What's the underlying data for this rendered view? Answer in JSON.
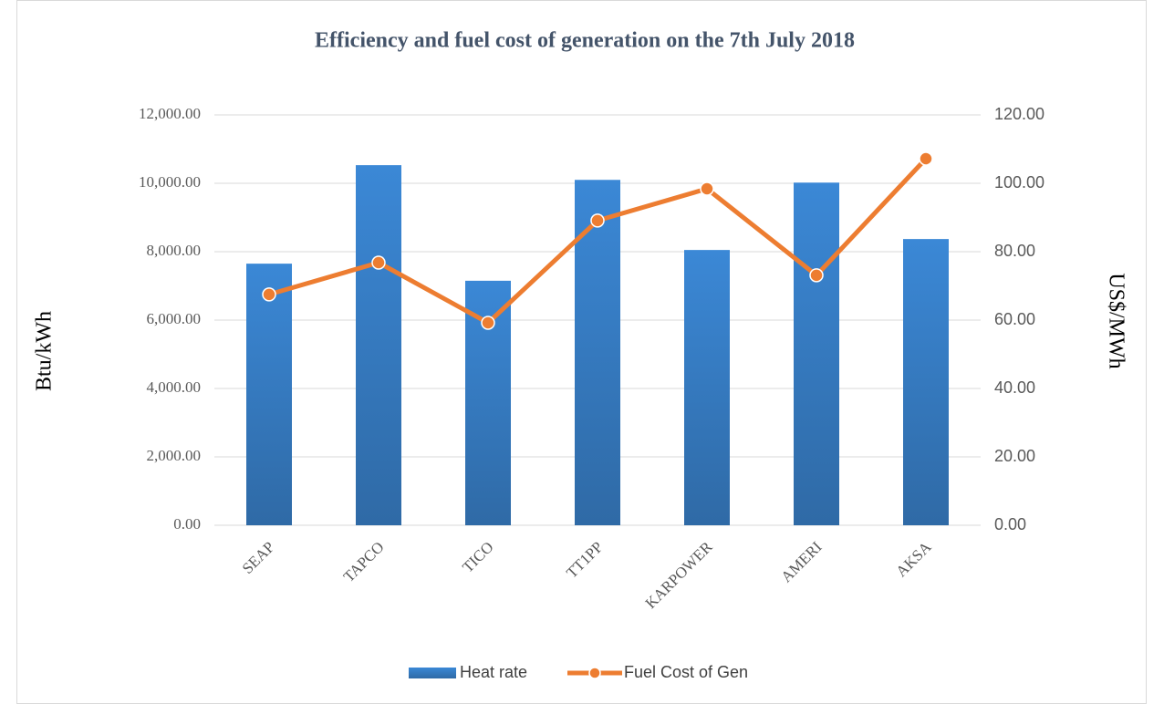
{
  "chart_data": {
    "type": "bar-line",
    "title": "Efficiency and fuel cost of  generation on the 7th July 2018",
    "ylabel": "Btu/kWh",
    "y2label": "US$/MWh",
    "categories": [
      "SEAP",
      "TAPCO",
      "TICO",
      "TT1PP",
      "KARPOWER",
      "AMERI",
      "AKSA"
    ],
    "series": [
      {
        "name": "Heat rate",
        "type": "bar",
        "color": "#3b88d6",
        "values": [
          7650,
          10530,
          7150,
          10100,
          8050,
          10020,
          8370
        ]
      },
      {
        "name": "Fuel Cost of Gen",
        "type": "line",
        "axis": "y2",
        "color": "#ed7d31",
        "values": [
          67.5,
          76.8,
          59.2,
          89.1,
          98.4,
          73.1,
          107.2
        ]
      }
    ],
    "ylim": [
      0,
      12000
    ],
    "yticks": [
      {
        "value": 0,
        "label": "0.00"
      },
      {
        "value": 2000,
        "label": "2,000.00"
      },
      {
        "value": 4000,
        "label": "4,000.00"
      },
      {
        "value": 6000,
        "label": "6,000.00"
      },
      {
        "value": 8000,
        "label": "8,000.00"
      },
      {
        "value": 10000,
        "label": "10,000.00"
      },
      {
        "value": 12000,
        "label": "12,000.00"
      }
    ],
    "y2lim": [
      0,
      120
    ],
    "y2ticks": [
      {
        "value": 0,
        "label": "0.00"
      },
      {
        "value": 20,
        "label": "20.00"
      },
      {
        "value": 40,
        "label": "40.00"
      },
      {
        "value": 60,
        "label": "60.00"
      },
      {
        "value": 80,
        "label": "80.00"
      },
      {
        "value": 100,
        "label": "100.00"
      },
      {
        "value": 120,
        "label": "120.00"
      }
    ],
    "grid": true,
    "legend": "bottom"
  }
}
